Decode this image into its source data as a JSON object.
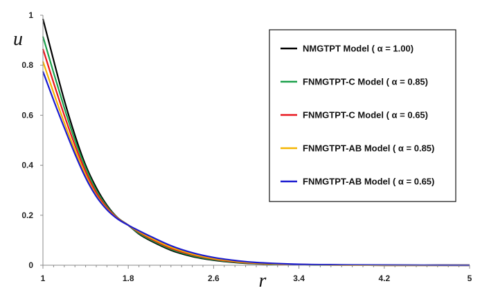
{
  "chart_data": {
    "type": "line",
    "title": "",
    "xlabel": "r",
    "ylabel": "u",
    "xlim": [
      1,
      5
    ],
    "ylim": [
      0,
      1
    ],
    "x_ticks": [
      "1",
      "1.8",
      "2.6",
      "3.4",
      "4.2",
      "5"
    ],
    "x_tick_values": [
      1,
      1.8,
      2.6,
      3.4,
      4.2,
      5
    ],
    "y_ticks": [
      "0",
      "0.2",
      "0.4",
      "0.6",
      "0.8",
      "1"
    ],
    "y_tick_values": [
      0,
      0.2,
      0.4,
      0.6,
      0.8,
      1
    ],
    "grid": false,
    "legend_position": "top-right",
    "x": [
      1.0,
      1.1,
      1.2,
      1.3,
      1.4,
      1.5,
      1.6,
      1.7,
      1.8,
      1.9,
      2.0,
      2.2,
      2.4,
      2.6,
      2.8,
      3.0,
      3.4,
      3.8,
      4.2,
      5.0
    ],
    "series": [
      {
        "name": "NMGTPT Model ( α = 1.00)",
        "color": "#000000",
        "values": [
          0.985,
          0.82,
          0.66,
          0.52,
          0.4,
          0.31,
          0.24,
          0.19,
          0.16,
          0.125,
          0.1,
          0.06,
          0.035,
          0.02,
          0.011,
          0.006,
          0.002,
          0.001,
          0.0,
          0.0
        ]
      },
      {
        "name": "FNMGTPT-C Model ( α = 0.85)",
        "color": "#1aa04a",
        "values": [
          0.915,
          0.77,
          0.63,
          0.5,
          0.39,
          0.3,
          0.235,
          0.19,
          0.16,
          0.128,
          0.104,
          0.064,
          0.038,
          0.022,
          0.012,
          0.007,
          0.002,
          0.001,
          0.0,
          0.0
        ]
      },
      {
        "name": "FNMGTPT-C Model ( α = 0.65)",
        "color": "#e8141b",
        "values": [
          0.865,
          0.73,
          0.6,
          0.48,
          0.375,
          0.29,
          0.23,
          0.188,
          0.16,
          0.132,
          0.108,
          0.068,
          0.042,
          0.025,
          0.014,
          0.008,
          0.003,
          0.001,
          0.0,
          0.0
        ]
      },
      {
        "name": "FNMGTPT-AB Model ( α = 0.85)",
        "color": "#f5b400",
        "values": [
          0.815,
          0.69,
          0.57,
          0.46,
          0.36,
          0.28,
          0.225,
          0.186,
          0.16,
          0.135,
          0.112,
          0.072,
          0.045,
          0.027,
          0.016,
          0.009,
          0.003,
          0.001,
          0.0,
          0.0
        ]
      },
      {
        "name": "FNMGTPT-AB Model ( α = 0.65)",
        "color": "#1a1ad0",
        "values": [
          0.775,
          0.66,
          0.55,
          0.445,
          0.35,
          0.275,
          0.222,
          0.185,
          0.16,
          0.138,
          0.117,
          0.078,
          0.05,
          0.031,
          0.019,
          0.011,
          0.004,
          0.002,
          0.001,
          0.0
        ]
      }
    ]
  }
}
